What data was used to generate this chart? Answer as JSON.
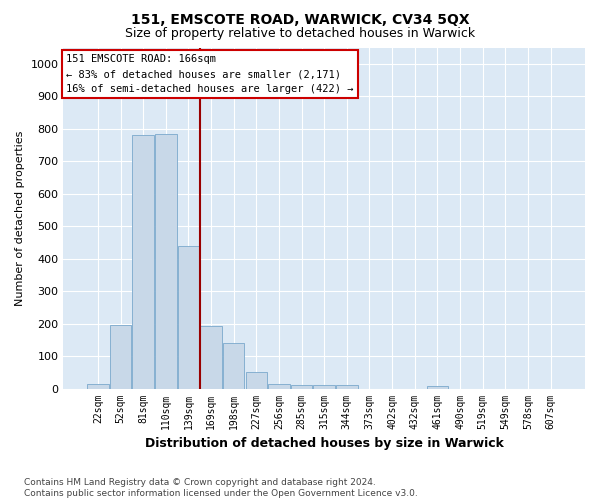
{
  "title": "151, EMSCOTE ROAD, WARWICK, CV34 5QX",
  "subtitle": "Size of property relative to detached houses in Warwick",
  "xlabel": "Distribution of detached houses by size in Warwick",
  "ylabel": "Number of detached properties",
  "footnote": "Contains HM Land Registry data © Crown copyright and database right 2024.\nContains public sector information licensed under the Open Government Licence v3.0.",
  "categories": [
    "22sqm",
    "52sqm",
    "81sqm",
    "110sqm",
    "139sqm",
    "169sqm",
    "198sqm",
    "227sqm",
    "256sqm",
    "285sqm",
    "315sqm",
    "344sqm",
    "373sqm",
    "402sqm",
    "432sqm",
    "461sqm",
    "490sqm",
    "519sqm",
    "549sqm",
    "578sqm",
    "607sqm"
  ],
  "values": [
    15,
    195,
    780,
    785,
    440,
    193,
    140,
    50,
    15,
    12,
    10,
    10,
    0,
    0,
    0,
    8,
    0,
    0,
    0,
    0,
    0
  ],
  "bar_color": "#c8d8e8",
  "bar_edge_color": "#7aa8cc",
  "background_color": "#dce9f5",
  "fig_background_color": "#ffffff",
  "grid_color": "#ffffff",
  "vline_color": "#990000",
  "annotation_text": "151 EMSCOTE ROAD: 166sqm\n← 83% of detached houses are smaller (2,171)\n16% of semi-detached houses are larger (422) →",
  "annotation_box_color": "#ffffff",
  "annotation_box_edge": "#cc0000",
  "ylim": [
    0,
    1050
  ],
  "yticks": [
    0,
    100,
    200,
    300,
    400,
    500,
    600,
    700,
    800,
    900,
    1000
  ],
  "title_fontsize": 10,
  "subtitle_fontsize": 9,
  "ylabel_fontsize": 8,
  "xlabel_fontsize": 9,
  "footnote_fontsize": 6.5,
  "annotation_fontsize": 7.5
}
